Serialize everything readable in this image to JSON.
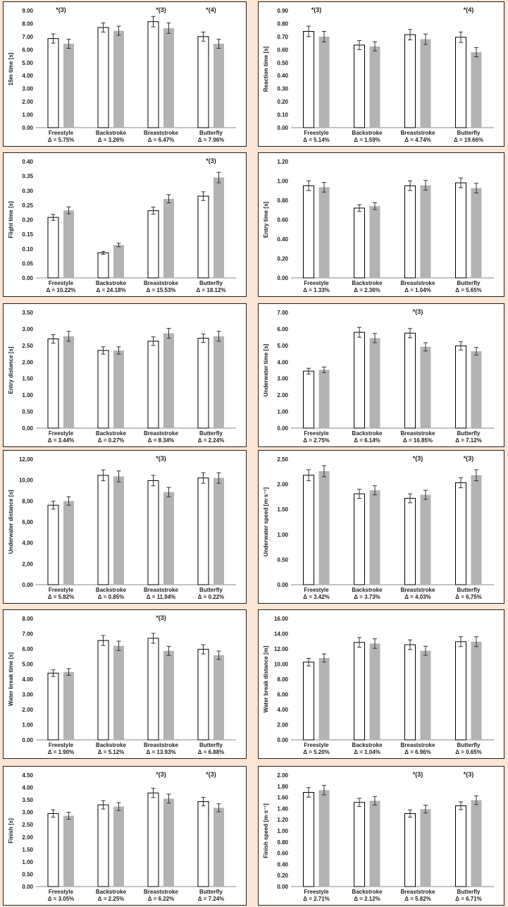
{
  "colors": {
    "bar_pre": "#ffffff",
    "bar_post": "#b3b3b3",
    "bar_outline": "#000000",
    "background": "#fbe5d4"
  },
  "chart_data": [
    {
      "type": "bar",
      "ylabel": "15m time [s]",
      "ylim": [
        0,
        9
      ],
      "ticks": [
        "0.00",
        "1.00",
        "2.00",
        "3.00",
        "4.00",
        "5.00",
        "6.00",
        "7.00",
        "8.00",
        "9.00"
      ],
      "categories": [
        "Freestyle",
        "Backstroke",
        "Breaststroke",
        "Butterfly"
      ],
      "deltas": [
        "Δ = 5.75%",
        "Δ = 3.26%",
        "Δ = 6.47%",
        "Δ = 7.96%"
      ],
      "annotations": [
        "*(3)",
        "",
        "*(3)",
        "*(4)"
      ],
      "series": [
        {
          "values": [
            6.85,
            7.7,
            8.15,
            7.0
          ],
          "errors": [
            0.35,
            0.35,
            0.4,
            0.35
          ]
        },
        {
          "values": [
            6.45,
            7.45,
            7.65,
            6.45
          ],
          "errors": [
            0.35,
            0.35,
            0.4,
            0.35
          ]
        }
      ],
      "grid": false
    },
    {
      "type": "bar",
      "ylabel": "Reaction time [s]",
      "ylim": [
        0,
        0.9
      ],
      "ticks": [
        "0.00",
        "0.10",
        "0.20",
        "0.30",
        "0.40",
        "0.50",
        "0.60",
        "0.70",
        "0.80",
        "0.90"
      ],
      "categories": [
        "Freestyle",
        "Backstroke",
        "Breaststroke",
        "Butterfly"
      ],
      "deltas": [
        "Δ = 5.14%",
        "Δ = 1.59%",
        "Δ = 4.74%",
        "Δ = 19.66%"
      ],
      "annotations": [
        "*(3)",
        "",
        "",
        "*(4)"
      ],
      "series": [
        {
          "values": [
            0.74,
            0.635,
            0.715,
            0.695
          ],
          "errors": [
            0.04,
            0.035,
            0.04,
            0.04
          ]
        },
        {
          "values": [
            0.7,
            0.625,
            0.68,
            0.58
          ],
          "errors": [
            0.04,
            0.035,
            0.04,
            0.035
          ]
        }
      ],
      "grid": false
    },
    {
      "type": "bar",
      "ylabel": "Flight time [s]",
      "ylim": [
        0,
        0.4
      ],
      "ticks": [
        "0.00",
        "0.05",
        "0.10",
        "0.15",
        "0.20",
        "0.25",
        "0.30",
        "0.35",
        "0.40"
      ],
      "categories": [
        "Freestyle",
        "Backstroke",
        "Breaststroke",
        "Butterfly"
      ],
      "deltas": [
        "Δ = 10.22%",
        "Δ = 24.18%",
        "Δ = 15.53%",
        "Δ = 18.12%"
      ],
      "annotations": [
        "",
        "",
        "",
        "*(3)"
      ],
      "series": [
        {
          "values": [
            0.208,
            0.086,
            0.231,
            0.281
          ],
          "errors": [
            0.01,
            0.005,
            0.012,
            0.015
          ]
        },
        {
          "values": [
            0.232,
            0.113,
            0.272,
            0.345
          ],
          "errors": [
            0.012,
            0.006,
            0.014,
            0.018
          ]
        }
      ],
      "grid": false
    },
    {
      "type": "bar",
      "ylabel": "Entry time [s]",
      "ylim": [
        0,
        1.2
      ],
      "ticks": [
        "0.00",
        "0.20",
        "0.40",
        "0.60",
        "0.80",
        "1.00",
        "1.20"
      ],
      "categories": [
        "Freestyle",
        "Backstroke",
        "Breaststroke",
        "Butterfly"
      ],
      "deltas": [
        "Δ = 1.33%",
        "Δ = 2.36%",
        "Δ = 1.04%",
        "Δ = 5.65%"
      ],
      "annotations": [
        "",
        "",
        "",
        ""
      ],
      "series": [
        {
          "values": [
            0.95,
            0.72,
            0.95,
            0.98
          ],
          "errors": [
            0.05,
            0.035,
            0.05,
            0.05
          ]
        },
        {
          "values": [
            0.935,
            0.74,
            0.955,
            0.925
          ],
          "errors": [
            0.05,
            0.035,
            0.05,
            0.05
          ]
        }
      ],
      "grid": false
    },
    {
      "type": "bar",
      "ylabel": "Entry distance [s]",
      "ylim": [
        0,
        3.5
      ],
      "ticks": [
        "0.00",
        "0.50",
        "1.00",
        "1.50",
        "2.00",
        "2.50",
        "3.00",
        "3.50"
      ],
      "categories": [
        "Freestyle",
        "Backstroke",
        "Breaststroke",
        "Butterfly"
      ],
      "deltas": [
        "Δ = 3.44%",
        "Δ = 0.27%",
        "Δ = 8.34%",
        "Δ = 2.24%"
      ],
      "annotations": [
        "",
        "",
        "",
        ""
      ],
      "series": [
        {
          "values": [
            2.7,
            2.35,
            2.63,
            2.72
          ],
          "errors": [
            0.13,
            0.11,
            0.13,
            0.13
          ]
        },
        {
          "values": [
            2.78,
            2.35,
            2.87,
            2.78
          ],
          "errors": [
            0.15,
            0.11,
            0.15,
            0.15
          ]
        }
      ],
      "grid": false
    },
    {
      "type": "bar",
      "ylabel": "Underwater time [s]",
      "ylim": [
        0,
        7
      ],
      "ticks": [
        "0.00",
        "1.00",
        "2.00",
        "3.00",
        "4.00",
        "5.00",
        "6.00",
        "7.00"
      ],
      "categories": [
        "Freestyle",
        "Backstroke",
        "Breaststroke",
        "Butterfly"
      ],
      "deltas": [
        "Δ = 2.75%",
        "Δ = 6.14%",
        "Δ = 16.85%",
        "Δ = 7.12%"
      ],
      "annotations": [
        "",
        "",
        "*(3)",
        ""
      ],
      "series": [
        {
          "values": [
            3.45,
            5.8,
            5.75,
            4.98
          ],
          "errors": [
            0.17,
            0.3,
            0.28,
            0.25
          ]
        },
        {
          "values": [
            3.53,
            5.45,
            4.92,
            4.65
          ],
          "errors": [
            0.17,
            0.28,
            0.25,
            0.23
          ]
        }
      ],
      "grid": false
    },
    {
      "type": "bar",
      "ylabel": "Underwater distance [s]",
      "ylim": [
        0,
        12
      ],
      "ticks": [
        "0.00",
        "2,00",
        "4,00",
        "6,00",
        "8,00",
        "10,00",
        "12,00"
      ],
      "categories": [
        "Freestyle",
        "Backstroke",
        "Breaststroke",
        "Butterfly"
      ],
      "deltas": [
        "Δ = 5.82%",
        "Δ = 0.85%",
        "Δ = 11.94%",
        "Δ = 0.22%"
      ],
      "annotations": [
        "",
        "",
        "*(3)",
        ""
      ],
      "series": [
        {
          "values": [
            7.6,
            10.45,
            9.95,
            10.2
          ],
          "errors": [
            0.38,
            0.52,
            0.5,
            0.5
          ]
        },
        {
          "values": [
            8.0,
            10.35,
            8.85,
            10.2
          ],
          "errors": [
            0.4,
            0.52,
            0.45,
            0.5
          ]
        }
      ],
      "grid": false
    },
    {
      "type": "bar",
      "ylabel": "Underwater   speed  [m·s⁻¹]",
      "ylim": [
        0,
        2.5
      ],
      "ticks": [
        "0.00",
        "0.50",
        "1.00",
        "1.50",
        "2.00",
        "2.50"
      ],
      "categories": [
        "Freestyle",
        "Backstroke",
        "Breaststroke",
        "Butterfly"
      ],
      "deltas": [
        "Δ = 3.42%",
        "Δ = 3.73%",
        "Δ = 4.03%",
        "Δ = 6.75%"
      ],
      "annotations": [
        "",
        "",
        "*(3)",
        "*(3)"
      ],
      "series": [
        {
          "values": [
            2.18,
            1.81,
            1.72,
            2.03
          ],
          "errors": [
            0.11,
            0.09,
            0.09,
            0.1
          ]
        },
        {
          "values": [
            2.26,
            1.88,
            1.79,
            2.18
          ],
          "errors": [
            0.11,
            0.09,
            0.09,
            0.11
          ]
        }
      ],
      "grid": false
    },
    {
      "type": "bar",
      "ylabel": "Water break time [s]",
      "ylim": [
        0,
        8
      ],
      "ticks": [
        "0.00",
        "1.00",
        "2.00",
        "3.00",
        "4.00",
        "5.00",
        "6.00",
        "7.00",
        "8.00"
      ],
      "categories": [
        "Freestyle",
        "Backstroke",
        "Breaststroke",
        "Butterfly"
      ],
      "deltas": [
        "Δ = 1.90%",
        "Δ = 5.12%",
        "Δ = 13.93%",
        "Δ = 6.88%"
      ],
      "annotations": [
        "",
        "",
        "*(3)",
        ""
      ],
      "series": [
        {
          "values": [
            4.4,
            6.55,
            6.7,
            5.97
          ],
          "errors": [
            0.22,
            0.33,
            0.33,
            0.3
          ]
        },
        {
          "values": [
            4.48,
            6.2,
            5.87,
            5.58
          ],
          "errors": [
            0.22,
            0.31,
            0.3,
            0.28
          ]
        }
      ],
      "grid": false
    },
    {
      "type": "bar",
      "ylabel": "Water break distance [m]",
      "ylim": [
        0,
        16
      ],
      "ticks": [
        "0.00",
        "2.00",
        "4.00",
        "6.00",
        "8.00",
        "10.00",
        "12.00",
        "14.00",
        "16.00"
      ],
      "categories": [
        "Freestyle",
        "Backstroke",
        "Breaststroke",
        "Butterfly"
      ],
      "deltas": [
        "Δ = 5.20%",
        "Δ = 1.04%",
        "Δ = 6.96%",
        "Δ = 0.65%"
      ],
      "annotations": [
        "",
        "",
        "",
        ""
      ],
      "series": [
        {
          "values": [
            10.25,
            12.85,
            12.55,
            12.95
          ],
          "errors": [
            0.5,
            0.64,
            0.63,
            0.65
          ]
        },
        {
          "values": [
            10.8,
            12.7,
            11.75,
            12.95
          ],
          "errors": [
            0.54,
            0.63,
            0.6,
            0.65
          ]
        }
      ],
      "grid": false
    },
    {
      "type": "bar",
      "ylabel": "Finish [s]",
      "ylim": [
        0,
        4.5
      ],
      "ticks": [
        "0.00",
        "0.50",
        "1.00",
        "1.50",
        "2.00",
        "2.50",
        "3.00",
        "3.50",
        "4.00",
        "4.50"
      ],
      "categories": [
        "Freestyle",
        "Backstroke",
        "Breaststroke",
        "Butterfly"
      ],
      "deltas": [
        "Δ = 3.05%",
        "Δ = 2.25%",
        "Δ = 6.22%",
        "Δ = 7.24%"
      ],
      "annotations": [
        "",
        "",
        "*(3)",
        "*(3)"
      ],
      "series": [
        {
          "values": [
            2.95,
            3.3,
            3.78,
            3.43
          ],
          "errors": [
            0.15,
            0.17,
            0.19,
            0.17
          ]
        },
        {
          "values": [
            2.86,
            3.23,
            3.55,
            3.18
          ],
          "errors": [
            0.14,
            0.16,
            0.18,
            0.16
          ]
        }
      ],
      "grid": false
    },
    {
      "type": "bar",
      "ylabel": "Finish  speed  [m·s⁻¹]",
      "ylim": [
        0,
        2
      ],
      "ticks": [
        "0.00",
        "0.20",
        "0.40",
        "0.60",
        "0.80",
        "1.00",
        "1.20",
        "1.40",
        "1.60",
        "1.80",
        "2.00"
      ],
      "categories": [
        "Freestyle",
        "Backstroke",
        "Breaststroke",
        "Butterfly"
      ],
      "deltas": [
        "Δ = 2.71%",
        "Δ = 2.12%",
        "Δ = 5.82%",
        "Δ = 6.71%"
      ],
      "annotations": [
        "",
        "",
        "*(3)",
        "*(3)"
      ],
      "series": [
        {
          "values": [
            1.69,
            1.51,
            1.31,
            1.45
          ],
          "errors": [
            0.085,
            0.075,
            0.065,
            0.07
          ]
        },
        {
          "values": [
            1.73,
            1.54,
            1.39,
            1.55
          ],
          "errors": [
            0.085,
            0.077,
            0.07,
            0.078
          ]
        }
      ],
      "grid": false
    }
  ]
}
